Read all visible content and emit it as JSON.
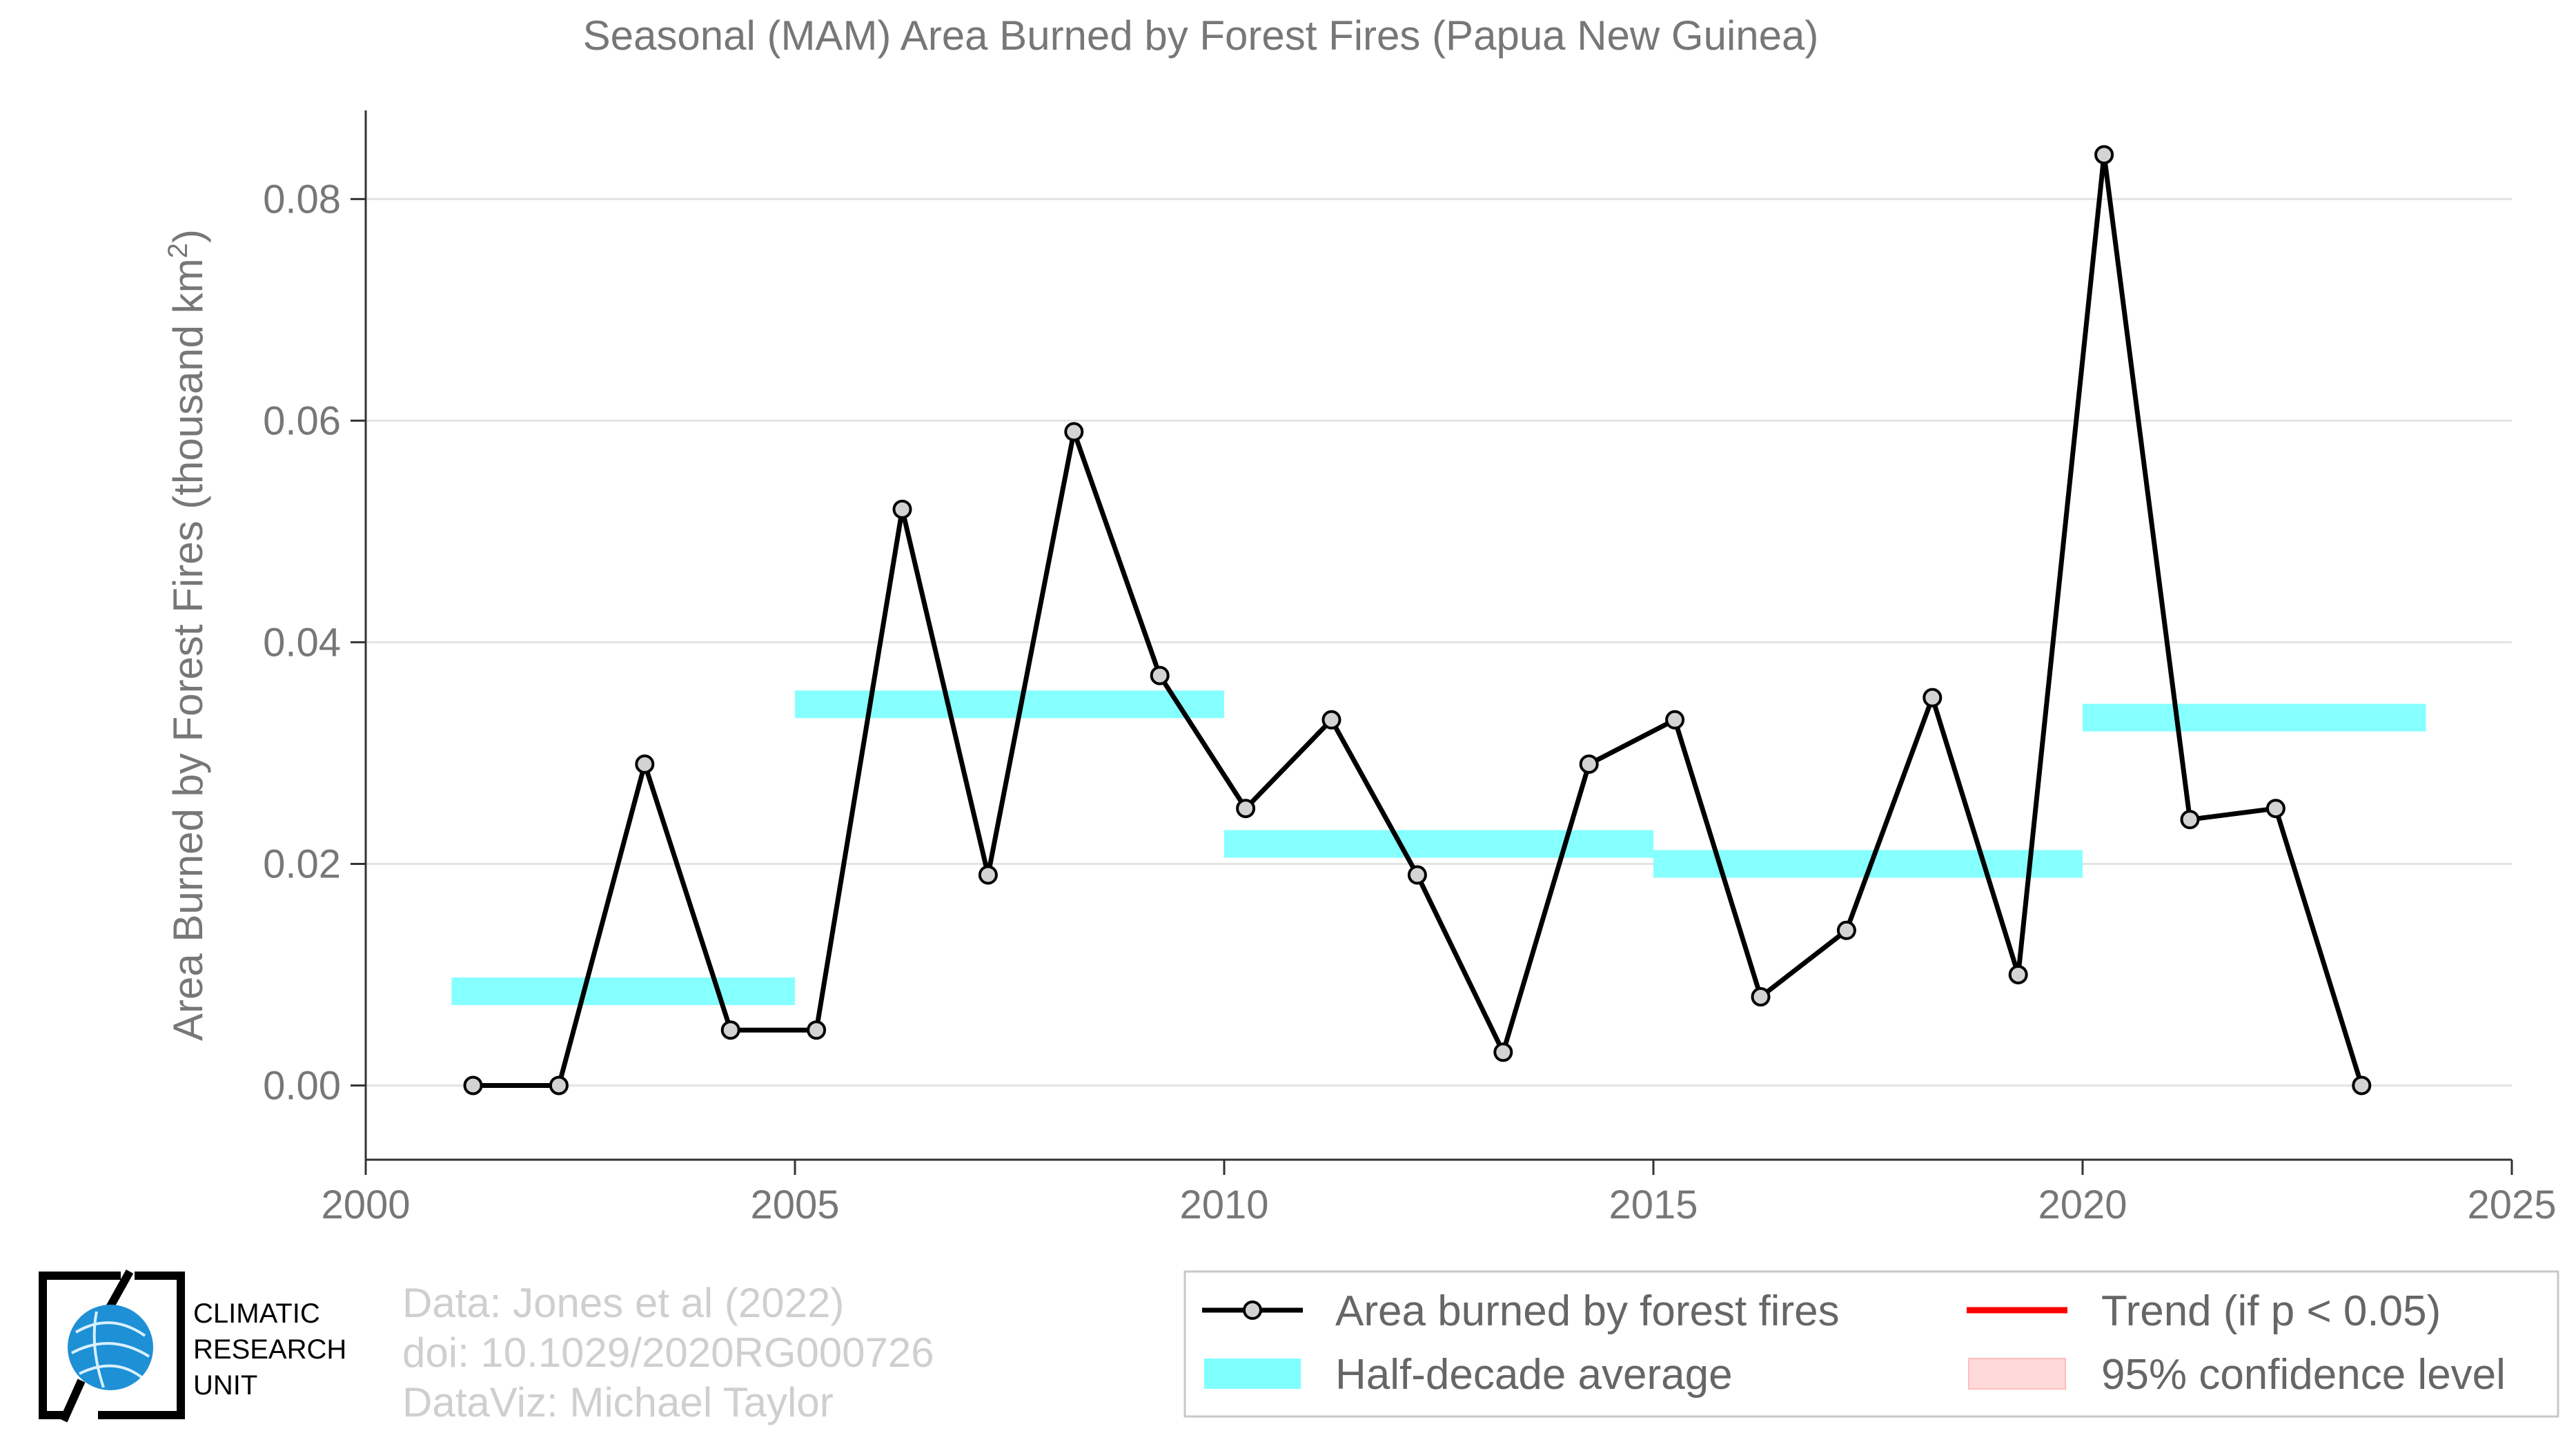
{
  "chart_data": {
    "type": "line",
    "title": "Seasonal (MAM) Area Burned by Forest Fires (Papua New Guinea)",
    "ylabel": "Area Burned by Forest Fires (thousand km²)",
    "xlabel": "",
    "xlim": [
      2000,
      2025
    ],
    "ylim": [
      -0.0067,
      0.088
    ],
    "x_ticks": [
      2000,
      2005,
      2010,
      2015,
      2020,
      2025
    ],
    "y_ticks": [
      0.0,
      0.02,
      0.04,
      0.06,
      0.08
    ],
    "y_tick_labels": [
      "0.00",
      "0.02",
      "0.04",
      "0.06",
      "0.08"
    ],
    "grid": "horizontal",
    "series": [
      {
        "name": "Area burned by forest fires",
        "color": "#000000",
        "marker_fill": "#d3d3d3",
        "x": [
          2001.25,
          2002.25,
          2003.25,
          2004.25,
          2005.25,
          2006.25,
          2007.25,
          2008.25,
          2009.25,
          2010.25,
          2011.25,
          2012.25,
          2013.25,
          2014.25,
          2015.25,
          2016.25,
          2017.25,
          2018.25,
          2019.25,
          2020.25,
          2021.25,
          2022.25,
          2023.25
        ],
        "y": [
          0.0,
          0.0,
          0.029,
          0.005,
          0.005,
          0.052,
          0.019,
          0.059,
          0.037,
          0.025,
          0.033,
          0.019,
          0.003,
          0.029,
          0.033,
          0.008,
          0.014,
          0.035,
          0.01,
          0.084,
          0.024,
          0.025,
          0.0
        ]
      }
    ],
    "half_decade_averages": {
      "name": "Half-decade average",
      "color": "#80ffff",
      "segments": [
        {
          "x_start": 2001,
          "x_end": 2005,
          "value": 0.0085
        },
        {
          "x_start": 2005,
          "x_end": 2010,
          "value": 0.0344
        },
        {
          "x_start": 2010,
          "x_end": 2015,
          "value": 0.0218
        },
        {
          "x_start": 2015,
          "x_end": 2020,
          "value": 0.02
        },
        {
          "x_start": 2020,
          "x_end": 2024,
          "value": 0.0332
        }
      ]
    },
    "legend": {
      "placement": "bottom-right",
      "entries": [
        {
          "label": "Area burned by forest fires",
          "kind": "line-marker",
          "color": "#000000"
        },
        {
          "label": "Trend (if p < 0.05)",
          "kind": "line",
          "color": "#ff0000"
        },
        {
          "label": "Half-decade average",
          "kind": "band",
          "color": "#80ffff"
        },
        {
          "label": "95% confidence level",
          "kind": "band",
          "color": "#ffd9d9"
        }
      ]
    }
  },
  "credits": {
    "line1": "Data: Jones et al (2022)",
    "line2": "doi: 10.1029/2020RG000726",
    "line3": "DataViz: Michael Taylor"
  },
  "logo": {
    "line1": "CLIMATIC",
    "line2": "RESEARCH",
    "line3": "UNIT",
    "globe_color": "#1e90d6"
  }
}
